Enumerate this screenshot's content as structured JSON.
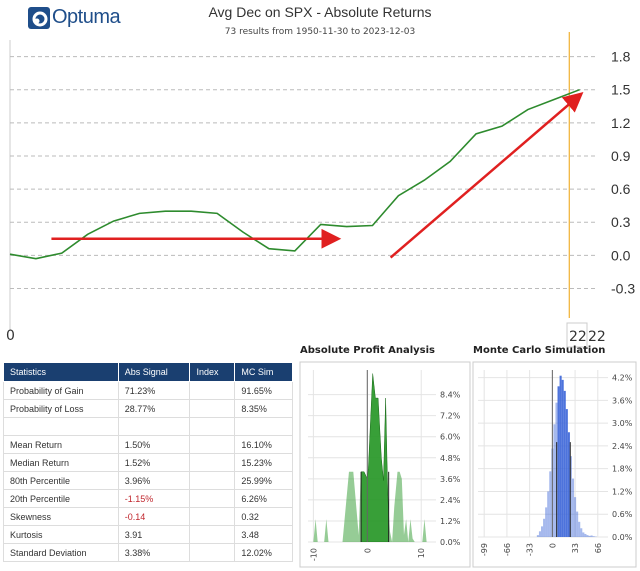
{
  "header": {
    "logo": "Optuma",
    "title": "Avg Dec on SPX - Absolute Returns",
    "subtitle": "73 results from 1950-11-30 to 2023-12-03"
  },
  "colors": {
    "line": "#2e8b2e",
    "arrow": "#e02020",
    "marker": "#f0b030",
    "header_bg": "#1a3f70",
    "apa": "#2e9a2e",
    "mc": "#3a64d8",
    "negative": "#c0262d"
  },
  "chart_data": [
    {
      "type": "line",
      "title": "Avg Dec on SPX - Absolute Returns",
      "x": [
        0,
        1,
        2,
        3,
        4,
        5,
        6,
        7,
        8,
        9,
        10,
        11,
        12,
        13,
        14,
        15,
        16,
        17,
        18,
        19,
        20,
        21,
        22
      ],
      "values": [
        0.01,
        -0.03,
        0.02,
        0.19,
        0.31,
        0.38,
        0.4,
        0.4,
        0.38,
        0.21,
        0.06,
        0.04,
        0.28,
        0.26,
        0.27,
        0.54,
        0.68,
        0.85,
        1.1,
        1.17,
        1.32,
        1.41,
        1.5
      ],
      "ylim": [
        -0.45,
        1.95
      ],
      "yticks": [
        "1.8",
        "1.5",
        "1.2",
        "0.9",
        "0.6",
        "0.3",
        "0.0",
        "-0.3"
      ],
      "ytick_values": [
        1.8,
        1.5,
        1.2,
        0.9,
        0.6,
        0.3,
        0,
        -0.3
      ],
      "xlim": [
        0,
        22.4
      ],
      "x_left_label": "0",
      "x_right_label": "22",
      "x_right_label2": "22",
      "marker_x": 21.6,
      "annotations": [
        {
          "type": "arrow",
          "from": [
            1.6,
            0.15
          ],
          "to": [
            12.6,
            0.15
          ]
        },
        {
          "type": "arrow",
          "from": [
            14.7,
            -0.02
          ],
          "to": [
            22.0,
            1.45
          ]
        }
      ]
    },
    {
      "type": "area",
      "title": "Absolute Profit Analysis",
      "xlim": [
        -11,
        12
      ],
      "ylim": [
        0,
        9.8
      ],
      "xticks": [
        "-10",
        "0",
        "10"
      ],
      "xtick_values": [
        -10,
        0,
        10
      ],
      "yticks": [
        "8.4%",
        "7.2%",
        "6.0%",
        "4.8%",
        "3.6%",
        "2.4%",
        "1.2%",
        "0.0%"
      ],
      "ytick_values": [
        8.4,
        7.2,
        6.0,
        4.8,
        3.6,
        2.4,
        1.2,
        0
      ],
      "x": [
        -10,
        -9.6,
        -9.2,
        -8,
        -7.6,
        -7.2,
        -6,
        -4.6,
        -3.4,
        -3,
        -2.6,
        -1.6,
        -1.2,
        -0.6,
        0,
        0.2,
        1,
        1.5,
        2,
        2.6,
        3,
        3.4,
        3.8,
        4.2,
        4.6,
        5,
        5.6,
        6,
        6.4,
        6.8,
        7.2,
        7.6,
        8,
        8.4,
        8.8,
        9.4,
        10.2,
        10.6,
        11
      ],
      "values": [
        0,
        1.3,
        0,
        0,
        1.3,
        0,
        0,
        0,
        4.0,
        4.0,
        4.0,
        0.4,
        4.0,
        4.0,
        3.6,
        4.2,
        9.6,
        8.2,
        8.2,
        4.8,
        3.5,
        8.2,
        2.6,
        0.6,
        0,
        2,
        4,
        4,
        3.6,
        0.4,
        1.3,
        0,
        1.3,
        0.2,
        0,
        0,
        0,
        1.3,
        0
      ],
      "band": [
        -1.15,
        3.96
      ],
      "zero_line": 0
    },
    {
      "type": "histogram",
      "title": "Monte Carlo Simulation",
      "xlim": [
        -108,
        75
      ],
      "ylim": [
        0,
        4.4
      ],
      "xticks": [
        "-99",
        "-66",
        "-33",
        "0",
        "33",
        "66"
      ],
      "xtick_values": [
        -99,
        -66,
        -33,
        0,
        33,
        66
      ],
      "yticks": [
        "4.2%",
        "3.6%",
        "3.0%",
        "2.4%",
        "1.8%",
        "1.2%",
        "0.6%",
        "0.0%"
      ],
      "ytick_values": [
        4.2,
        3.6,
        3.0,
        2.4,
        1.8,
        1.2,
        0.6,
        0
      ],
      "x": [
        -21,
        -18,
        -15,
        -12,
        -9,
        -6,
        -3,
        0,
        3,
        6,
        9,
        12,
        15,
        18,
        21,
        24,
        27,
        30,
        33,
        36,
        39,
        42,
        45,
        48,
        51,
        54,
        57,
        60,
        63
      ],
      "values": [
        0.05,
        0.15,
        0.28,
        0.48,
        0.78,
        1.2,
        1.73,
        2.33,
        2.97,
        3.54,
        3.97,
        4.25,
        4.14,
        3.85,
        3.37,
        2.76,
        2.13,
        1.54,
        1.05,
        0.67,
        0.4,
        0.23,
        0.12,
        0.08,
        0.05,
        0.03,
        0.04,
        0.02,
        0.01
      ],
      "band": [
        6.26,
        25.99
      ],
      "zero_line": 0
    }
  ],
  "stats": {
    "headers": [
      "Statistics",
      "Abs Signal",
      "Index",
      "MC Sim"
    ],
    "rows": [
      [
        "Probability of Gain",
        "71.23%",
        "",
        "91.65%"
      ],
      [
        "Probability of Loss",
        "28.77%",
        "",
        "8.35%"
      ],
      [
        "",
        "",
        "",
        ""
      ],
      [
        "Mean Return",
        "1.50%",
        "",
        "16.10%"
      ],
      [
        "Median Return",
        "1.52%",
        "",
        "15.23%"
      ],
      [
        "80th Percentile",
        "3.96%",
        "",
        "25.99%"
      ],
      [
        "20th Percentile",
        "-1.15%",
        "",
        "6.26%"
      ],
      [
        "Skewness",
        "-0.14",
        "",
        "0.32"
      ],
      [
        "Kurtosis",
        "3.91",
        "",
        "3.48"
      ],
      [
        "Standard Deviation",
        "3.38%",
        "",
        "12.02%"
      ]
    ]
  }
}
